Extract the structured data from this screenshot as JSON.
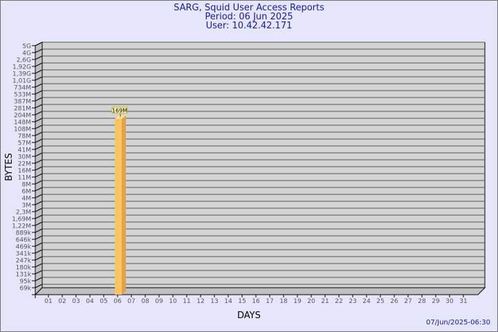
{
  "title": "SARG, Squid User Access Reports",
  "period": "Period: 06 Jun 2025",
  "user": "User: 10.42.42.171",
  "footer": "07/Jun/2025-06:30",
  "colors": {
    "title": "#1a1aa0",
    "plot": "#d3d3d3",
    "bar": "#fdc263",
    "bar_side": "#e0a24c"
  },
  "chart_data": {
    "type": "bar",
    "xlabel": "DAYS",
    "ylabel": "BYTES",
    "y_scale": "log",
    "y_ticks": [
      "5G",
      "4G",
      "2,6G",
      "1,92G",
      "1,39G",
      "1,01G",
      "734M",
      "533M",
      "387M",
      "281M",
      "204M",
      "148M",
      "108M",
      "78M",
      "57M",
      "41M",
      "30M",
      "22M",
      "16M",
      "11M",
      "8M",
      "6M",
      "4M",
      "3M",
      "2,3M",
      "1,69M",
      "1,22M",
      "889k",
      "646k",
      "469k",
      "341k",
      "247k",
      "180k",
      "131k",
      "95k",
      "69k"
    ],
    "categories": [
      "01",
      "02",
      "03",
      "04",
      "05",
      "06",
      "07",
      "08",
      "09",
      "10",
      "11",
      "12",
      "13",
      "14",
      "15",
      "16",
      "17",
      "18",
      "19",
      "20",
      "21",
      "22",
      "23",
      "24",
      "25",
      "26",
      "27",
      "28",
      "29",
      "30",
      "31"
    ],
    "values": [
      null,
      null,
      null,
      null,
      null,
      "169M",
      null,
      null,
      null,
      null,
      null,
      null,
      null,
      null,
      null,
      null,
      null,
      null,
      null,
      null,
      null,
      null,
      null,
      null,
      null,
      null,
      null,
      null,
      null,
      null,
      null
    ],
    "data_labels": [
      {
        "category": "06",
        "label": "169M"
      }
    ],
    "grid": true
  }
}
